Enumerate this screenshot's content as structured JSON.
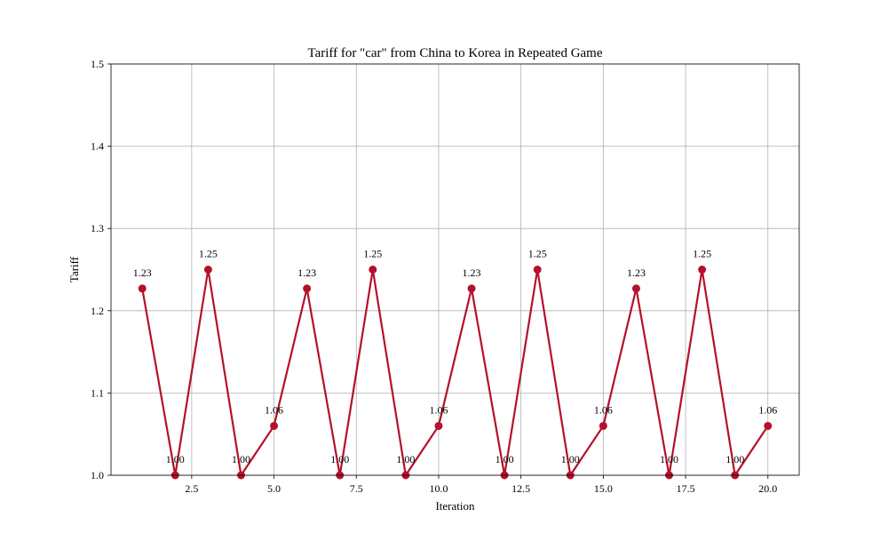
{
  "chart_data": {
    "type": "line",
    "title": "Tariff for \"car\" from China to Korea in Repeated Game",
    "xlabel": "Iteration",
    "ylabel": "Tariff",
    "xlim": [
      0.05,
      20.95
    ],
    "ylim": [
      1.0,
      1.5
    ],
    "x_ticks": [
      2.5,
      5.0,
      7.5,
      10.0,
      12.5,
      15.0,
      17.5,
      20.0
    ],
    "x_tick_labels": [
      "2.5",
      "5.0",
      "7.5",
      "10.0",
      "12.5",
      "15.0",
      "17.5",
      "20.0"
    ],
    "y_ticks": [
      1.0,
      1.1,
      1.2,
      1.3,
      1.4,
      1.5
    ],
    "y_tick_labels": [
      "1.0",
      "1.1",
      "1.2",
      "1.3",
      "1.4",
      "1.5"
    ],
    "grid": true,
    "series": [
      {
        "color": "#b5102a",
        "marker": "circle",
        "x": [
          1,
          2,
          3,
          4,
          5,
          6,
          7,
          8,
          9,
          10,
          11,
          12,
          13,
          14,
          15,
          16,
          17,
          18,
          19,
          20
        ],
        "values": [
          1.227,
          1.0,
          1.25,
          1.0,
          1.06,
          1.227,
          1.0,
          1.25,
          1.0,
          1.06,
          1.227,
          1.0,
          1.25,
          1.0,
          1.06,
          1.227,
          1.0,
          1.25,
          1.0,
          1.06
        ],
        "data_labels": [
          "1.23",
          "1.00",
          "1.25",
          "1.00",
          "1.06",
          "1.23",
          "1.00",
          "1.25",
          "1.00",
          "1.06",
          "1.23",
          "1.00",
          "1.25",
          "1.00",
          "1.06",
          "1.23",
          "1.00",
          "1.25",
          "1.00",
          "1.06"
        ]
      }
    ]
  }
}
